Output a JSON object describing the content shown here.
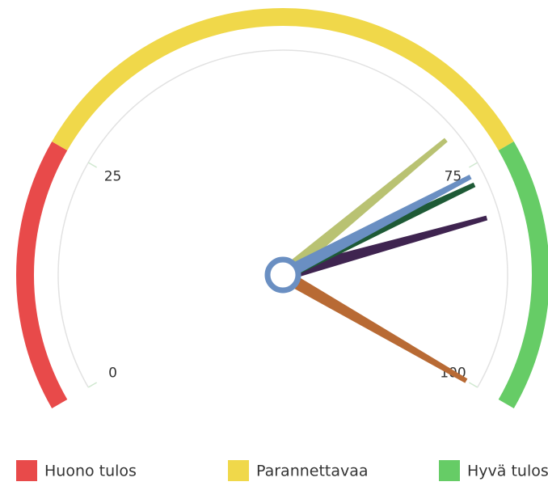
{
  "chart_data": {
    "type": "gauge",
    "ylim": [
      0,
      100
    ],
    "yticks": [
      0,
      25,
      75,
      100
    ],
    "bands": [
      {
        "name": "Huono tulos",
        "color": "#e84a4a",
        "from": 0,
        "to": 25
      },
      {
        "name": "Parannettavaa",
        "color": "#f0d84a",
        "from": 25,
        "to": 75
      },
      {
        "name": "Hyvä tulos",
        "color": "#66cc66",
        "from": 75,
        "to": 100
      }
    ],
    "series": [
      {
        "color": "#b86a34",
        "values": [
          100
        ]
      },
      {
        "color": "#b9c272",
        "values": [
          71
        ]
      },
      {
        "color": "#3f2450",
        "values": [
          81
        ]
      },
      {
        "color": "#1e5a36",
        "values": [
          77
        ]
      },
      {
        "color": "#6a8fc2",
        "values": [
          76
        ]
      }
    ]
  }
}
